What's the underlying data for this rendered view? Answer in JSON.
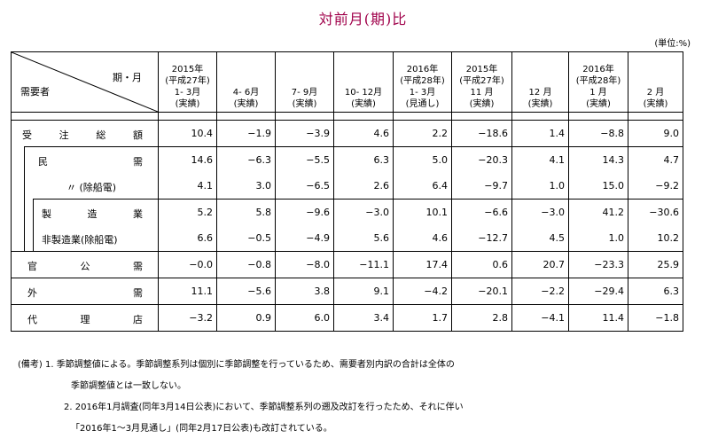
{
  "title": "対前月(期)比",
  "unit": "(単位:%)",
  "header": {
    "corner_top": "期・月",
    "corner_bottom": "需要者",
    "columns": [
      [
        "2015年",
        "(平成27年)",
        "1- 3月",
        "(実績)"
      ],
      [
        "",
        "",
        "4- 6月",
        "(実績)"
      ],
      [
        "",
        "",
        "7- 9月",
        "(実績)"
      ],
      [
        "",
        "",
        "10- 12月",
        "(実績)"
      ],
      [
        "2016年",
        "(平成28年)",
        "1- 3月",
        "(見通し)"
      ],
      [
        "2015年",
        "(平成27年)",
        "11 月",
        "(実績)"
      ],
      [
        "",
        "",
        "12 月",
        "(実績)"
      ],
      [
        "2016年",
        "(平成28年)",
        "1 月",
        "(実績)"
      ],
      [
        "",
        "",
        "2 月",
        "(実績)"
      ]
    ]
  },
  "rows": [
    {
      "label": "受注総額",
      "values": [
        "10.4",
        "−1.9",
        "−3.9",
        "4.6",
        "2.2",
        "−18.6",
        "1.4",
        "−8.8",
        "9.0"
      ]
    },
    {
      "label": "民需",
      "values": [
        "14.6",
        "−6.3",
        "−5.5",
        "6.3",
        "5.0",
        "−20.3",
        "4.1",
        "14.3",
        "4.7"
      ]
    },
    {
      "label": "〃 (除船電)",
      "values": [
        "4.1",
        "3.0",
        "−6.5",
        "2.6",
        "6.4",
        "−9.7",
        "1.0",
        "15.0",
        "−9.2"
      ]
    },
    {
      "label": "製造業",
      "values": [
        "5.2",
        "5.8",
        "−9.6",
        "−3.0",
        "10.1",
        "−6.6",
        "−3.0",
        "41.2",
        "−30.6"
      ]
    },
    {
      "label": "非製造業(除船電)",
      "values": [
        "6.6",
        "−0.5",
        "−4.9",
        "5.6",
        "4.6",
        "−12.7",
        "4.5",
        "1.0",
        "10.2"
      ]
    },
    {
      "label": "官公需",
      "values": [
        "−0.0",
        "−0.8",
        "−8.0",
        "−11.1",
        "17.4",
        "0.6",
        "20.7",
        "−23.3",
        "25.9"
      ]
    },
    {
      "label": "外需",
      "values": [
        "11.1",
        "−5.6",
        "3.8",
        "9.1",
        "−4.2",
        "−20.1",
        "−2.2",
        "−29.4",
        "6.3"
      ]
    },
    {
      "label": "代理店",
      "values": [
        "−3.2",
        "0.9",
        "6.0",
        "3.4",
        "1.7",
        "2.8",
        "−4.1",
        "11.4",
        "−1.8"
      ]
    }
  ],
  "notes": [
    "(備考) 1. 季節調整値による。季節調整系列は個別に季節調整を行っているため、需要者別内訳の合計は全体の",
    "季節調整値とは一致しない。",
    "2. 2016年1月調査(同年3月14日公表)において、季節調整系列の遡及改訂を行ったため、それに伴い",
    "「2016年1〜3月見通し」(同年2月17日公表)も改訂されている。"
  ]
}
